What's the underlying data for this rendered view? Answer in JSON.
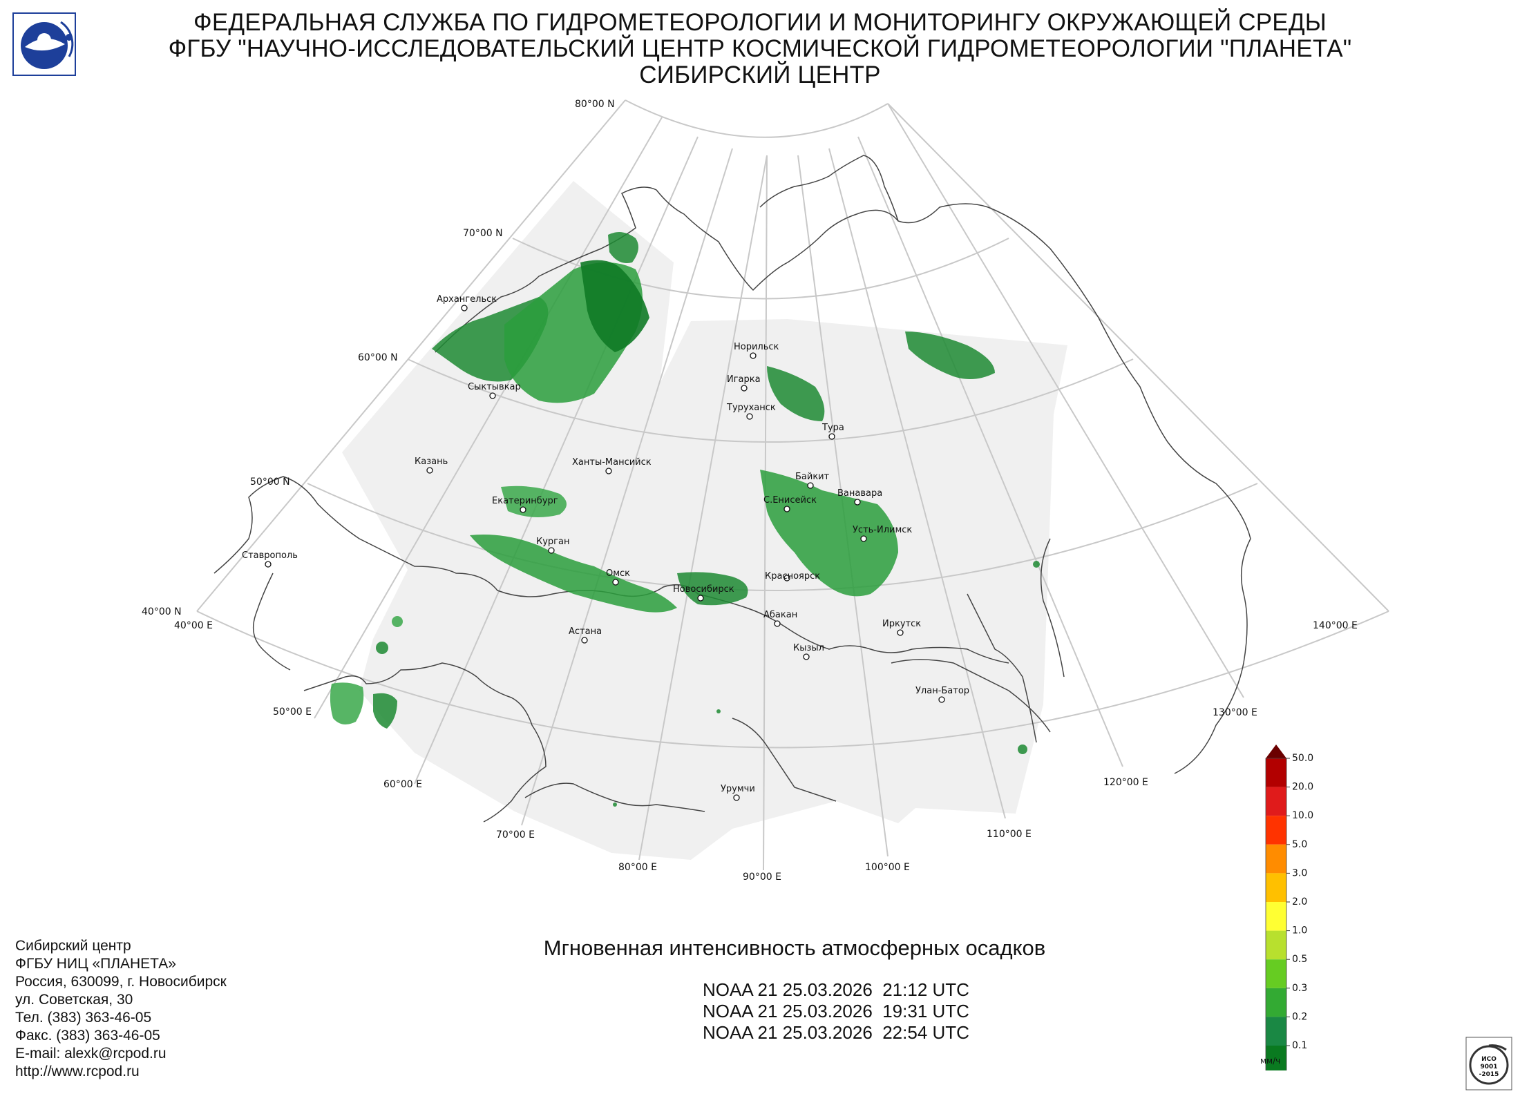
{
  "header": {
    "line1": "ФЕДЕРАЛЬНАЯ СЛУЖБА ПО ГИДРОМЕТЕОРОЛОГИИ И МОНИТОРИНГУ ОКРУЖАЮЩЕЙ СРЕДЫ",
    "line2": "ФГБУ \"НАУЧНО-ИССЛЕДОВАТЕЛЬСКИЙ ЦЕНТР КОСМИЧЕСКОЙ ГИДРОМЕТЕОРОЛОГИИ \"ПЛАНЕТА\"",
    "line3": "СИБИРСКИЙ ЦЕНТР"
  },
  "map": {
    "lat_labels": [
      "80°00 N",
      "70°00 N",
      "60°00 N",
      "50°00 N",
      "40°00 N"
    ],
    "lon_labels": [
      "40°00 E",
      "50°00 E",
      "60°00 E",
      "70°00 E",
      "80°00 E",
      "90°00 E",
      "100°00 E",
      "110°00 E",
      "120°00 E",
      "130°00 E",
      "140°00 E"
    ],
    "cities": [
      "Архангельск",
      "Сыктывкар",
      "Казань",
      "Ханты-Мансийск",
      "Екатеринбург",
      "Курган",
      "Омск",
      "Новосибирск",
      "Ставрополь",
      "Астана",
      "Норильск",
      "Игарка",
      "Туруханск",
      "Тура",
      "Байкит",
      "Ванавара",
      "С.Енисейск",
      "Усть-Илимск",
      "Красноярск",
      "Абакан",
      "Кызыл",
      "Иркутск",
      "Улан-Батор",
      "Урумчи"
    ],
    "grid_color": "#c8c8c8",
    "coverage_color": "#f0f0f0",
    "coast_color": "#444444"
  },
  "product": {
    "title": "Мгновенная интенсивность атмосферных осадков",
    "passes": [
      "NOAA 21 25.03.2026  21:12 UTC",
      "NOAA 21 25.03.2026  19:31 UTC",
      "NOAA 21 25.03.2026  22:54 UTC"
    ]
  },
  "legend": {
    "unit": "мм/ч",
    "labels": [
      "50.0",
      "20.0",
      "10.0",
      "5.0",
      "3.0",
      "2.0",
      "1.0",
      "0.5",
      "0.3",
      "0.2",
      "0.1"
    ],
    "colors": [
      "#b20000",
      "#e01b1b",
      "#ff3300",
      "#ff8c00",
      "#ffc000",
      "#ffff33",
      "#b8e02e",
      "#66cc22",
      "#33aa33",
      "#1a8844",
      "#0a7a20"
    ],
    "over_color": "#6b0000",
    "under_color": "#c0c0c0"
  },
  "contact": {
    "lines": [
      "Сибирский центр",
      "ФГБУ НИЦ «ПЛАНЕТА»",
      "Россия, 630099, г. Новосибирск",
      "ул. Советская, 30",
      "Тел. (383) 363-46-05",
      "Факс. (383) 363-46-05",
      "E-mail: alexk@rcpod.ru",
      "http://www.rcpod.ru"
    ]
  },
  "iso_badge": {
    "lines": [
      "ИСО",
      "9001",
      "-2015"
    ]
  }
}
